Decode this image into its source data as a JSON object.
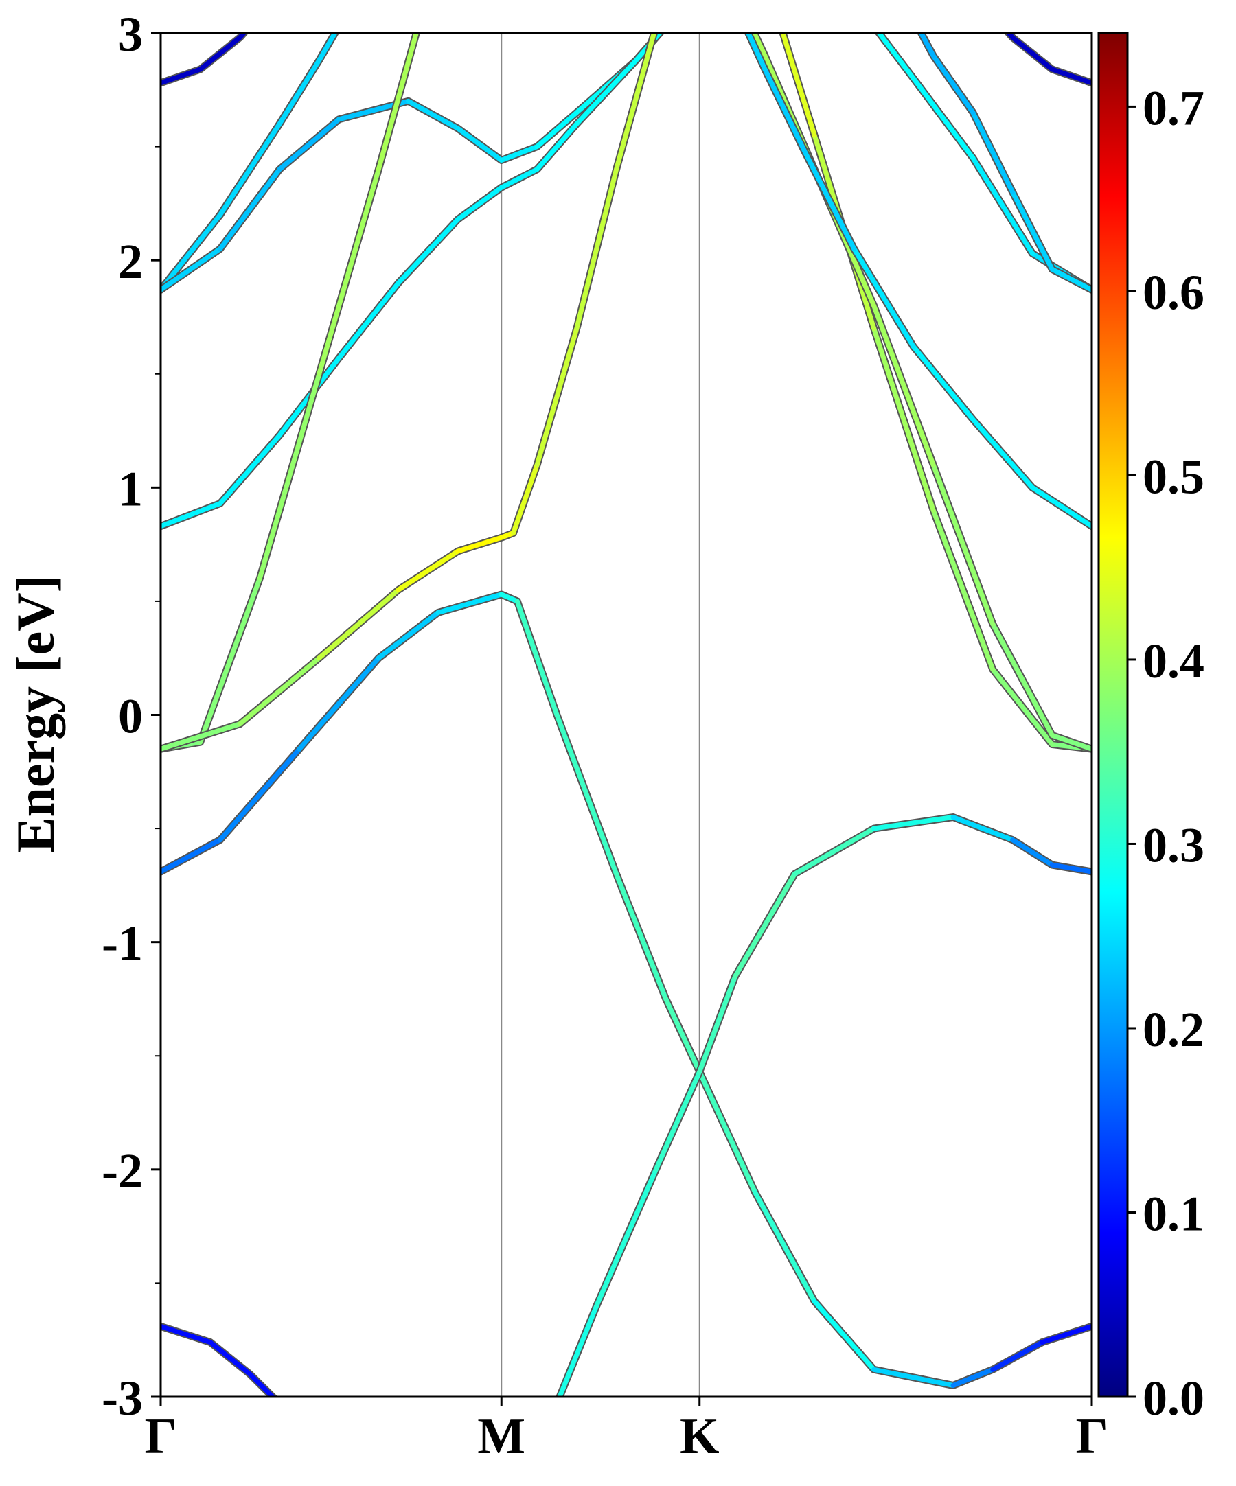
{
  "chart_data": {
    "type": "line",
    "title": "",
    "xlabel": "",
    "ylabel": "Energy [eV]",
    "ylim": [
      -3,
      3
    ],
    "x_range": [
      0,
      4.7
    ],
    "grid": false,
    "legend": "none",
    "x_ticks": [
      {
        "x": 0.0,
        "label": "Γ"
      },
      {
        "x": 1.72,
        "label": "M"
      },
      {
        "x": 2.72,
        "label": "K"
      },
      {
        "x": 4.7,
        "label": "Γ"
      }
    ],
    "y_ticks": [
      {
        "y": 3,
        "label": "3"
      },
      {
        "y": 2,
        "label": "2"
      },
      {
        "y": 1,
        "label": "1"
      },
      {
        "y": 0,
        "label": "0"
      },
      {
        "y": -1,
        "label": "-1"
      },
      {
        "y": -2,
        "label": "-2"
      },
      {
        "y": -3,
        "label": "-3"
      }
    ],
    "y_minor_ticks": [
      2.5,
      1.5,
      0.5,
      -0.5,
      -1.5,
      -2.5
    ],
    "colorbar": {
      "range": [
        0,
        0.74
      ],
      "ticks": [
        {
          "v": 0.0,
          "label": "0.0"
        },
        {
          "v": 0.1,
          "label": "0.1"
        },
        {
          "v": 0.2,
          "label": "0.2"
        },
        {
          "v": 0.3,
          "label": "0.3"
        },
        {
          "v": 0.4,
          "label": "0.4"
        },
        {
          "v": 0.5,
          "label": "0.5"
        },
        {
          "v": 0.6,
          "label": "0.6"
        },
        {
          "v": 0.7,
          "label": "0.7"
        }
      ]
    },
    "series": [
      {
        "points": [
          [
            0.0,
            2.78,
            0.05
          ],
          [
            0.2,
            2.84,
            0.05
          ],
          [
            0.4,
            2.98,
            0.05
          ],
          [
            0.45,
            3.03,
            0.05
          ]
        ]
      },
      {
        "points": [
          [
            4.7,
            2.78,
            0.05
          ],
          [
            4.5,
            2.84,
            0.05
          ],
          [
            4.3,
            2.98,
            0.05
          ],
          [
            4.25,
            3.03,
            0.05
          ]
        ]
      },
      {
        "points": [
          [
            0.0,
            1.87,
            0.25
          ],
          [
            0.3,
            2.2,
            0.25
          ],
          [
            0.6,
            2.6,
            0.25
          ],
          [
            0.8,
            2.88,
            0.25
          ],
          [
            0.9,
            3.03,
            0.25
          ]
        ]
      },
      {
        "points": [
          [
            0.0,
            1.87,
            0.25
          ],
          [
            0.3,
            2.05,
            0.24
          ],
          [
            0.6,
            2.4,
            0.23
          ],
          [
            0.9,
            2.62,
            0.22
          ],
          [
            1.25,
            2.7,
            0.25
          ],
          [
            1.5,
            2.58,
            0.25
          ],
          [
            1.72,
            2.44,
            0.26
          ],
          [
            1.9,
            2.5,
            0.27
          ],
          [
            2.1,
            2.65,
            0.28
          ],
          [
            2.4,
            2.88,
            0.28
          ],
          [
            2.55,
            3.03,
            0.28
          ]
        ]
      },
      {
        "points": [
          [
            0.0,
            0.83,
            0.27
          ],
          [
            0.3,
            0.93,
            0.27
          ],
          [
            0.6,
            1.23,
            0.27
          ],
          [
            0.9,
            1.57,
            0.27
          ],
          [
            1.2,
            1.9,
            0.27
          ],
          [
            1.5,
            2.18,
            0.27
          ],
          [
            1.72,
            2.32,
            0.27
          ],
          [
            1.9,
            2.4,
            0.27
          ],
          [
            2.1,
            2.6,
            0.28
          ],
          [
            2.4,
            2.88,
            0.28
          ],
          [
            2.55,
            3.03,
            0.28
          ]
        ]
      },
      {
        "points": [
          [
            0.0,
            -0.15,
            0.37
          ],
          [
            0.2,
            -0.12,
            0.37
          ],
          [
            0.5,
            0.6,
            0.38
          ],
          [
            0.8,
            1.5,
            0.39
          ],
          [
            1.1,
            2.4,
            0.4
          ],
          [
            1.3,
            3.03,
            0.4
          ]
        ]
      },
      {
        "points": [
          [
            0.0,
            -0.15,
            0.37
          ],
          [
            0.4,
            -0.04,
            0.38
          ],
          [
            0.8,
            0.25,
            0.4
          ],
          [
            1.2,
            0.55,
            0.44
          ],
          [
            1.5,
            0.72,
            0.46
          ],
          [
            1.72,
            0.78,
            0.47
          ],
          [
            1.78,
            0.8,
            0.45
          ],
          [
            1.9,
            1.1,
            0.43
          ],
          [
            2.1,
            1.7,
            0.42
          ],
          [
            2.3,
            2.4,
            0.42
          ],
          [
            2.5,
            3.03,
            0.42
          ]
        ]
      },
      {
        "points": [
          [
            0.0,
            -0.69,
            0.17
          ],
          [
            0.3,
            -0.55,
            0.18
          ],
          [
            0.7,
            -0.15,
            0.2
          ],
          [
            1.1,
            0.25,
            0.23
          ],
          [
            1.4,
            0.45,
            0.25
          ],
          [
            1.72,
            0.53,
            0.26
          ],
          [
            1.8,
            0.5,
            0.32
          ],
          [
            2.0,
            0.0,
            0.32
          ],
          [
            2.3,
            -0.7,
            0.32
          ],
          [
            2.55,
            -1.25,
            0.33
          ],
          [
            2.72,
            -1.57,
            0.33
          ],
          [
            3.0,
            -2.1,
            0.32
          ],
          [
            3.3,
            -2.58,
            0.3
          ],
          [
            3.6,
            -2.88,
            0.27
          ],
          [
            4.0,
            -2.95,
            0.22
          ],
          [
            4.2,
            -2.88,
            0.15
          ],
          [
            4.45,
            -2.76,
            0.1
          ],
          [
            4.7,
            -2.69,
            0.1
          ]
        ]
      },
      {
        "points": [
          [
            2.0,
            -3.03,
            0.29
          ],
          [
            2.2,
            -2.6,
            0.3
          ],
          [
            2.5,
            -2.0,
            0.31
          ],
          [
            2.72,
            -1.57,
            0.32
          ],
          [
            2.9,
            -1.15,
            0.33
          ],
          [
            3.2,
            -0.7,
            0.34
          ],
          [
            3.6,
            -0.5,
            0.31
          ],
          [
            4.0,
            -0.45,
            0.28
          ],
          [
            4.3,
            -0.55,
            0.22
          ],
          [
            4.5,
            -0.66,
            0.17
          ],
          [
            4.7,
            -0.69,
            0.17
          ]
        ]
      },
      {
        "points": [
          [
            0.0,
            -2.69,
            0.1
          ],
          [
            0.25,
            -2.76,
            0.1
          ],
          [
            0.45,
            -2.9,
            0.1
          ],
          [
            0.6,
            -3.03,
            0.1
          ]
        ]
      },
      {
        "points": [
          [
            4.7,
            -0.15,
            0.37
          ],
          [
            4.5,
            -0.13,
            0.37
          ],
          [
            4.2,
            0.2,
            0.38
          ],
          [
            3.9,
            0.9,
            0.39
          ],
          [
            3.6,
            1.7,
            0.4
          ],
          [
            3.3,
            2.55,
            0.43
          ],
          [
            3.13,
            3.03,
            0.45
          ]
        ]
      },
      {
        "points": [
          [
            4.7,
            -0.15,
            0.37
          ],
          [
            4.5,
            -0.09,
            0.37
          ],
          [
            4.2,
            0.4,
            0.38
          ],
          [
            3.9,
            1.1,
            0.39
          ],
          [
            3.6,
            1.8,
            0.4
          ],
          [
            3.3,
            2.4,
            0.4
          ],
          [
            3.05,
            2.9,
            0.4
          ],
          [
            2.98,
            3.03,
            0.4
          ]
        ]
      },
      {
        "points": [
          [
            4.7,
            0.83,
            0.27
          ],
          [
            4.4,
            1.0,
            0.27
          ],
          [
            4.1,
            1.3,
            0.27
          ],
          [
            3.8,
            1.62,
            0.27
          ],
          [
            3.5,
            2.05,
            0.25
          ],
          [
            3.25,
            2.48,
            0.24
          ],
          [
            3.05,
            2.84,
            0.24
          ],
          [
            2.95,
            3.03,
            0.25
          ]
        ]
      },
      {
        "points": [
          [
            4.7,
            1.87,
            0.25
          ],
          [
            4.4,
            2.03,
            0.26
          ],
          [
            4.1,
            2.45,
            0.27
          ],
          [
            3.8,
            2.8,
            0.28
          ],
          [
            3.6,
            3.03,
            0.28
          ]
        ]
      },
      {
        "points": [
          [
            4.7,
            1.87,
            0.25
          ],
          [
            4.5,
            1.96,
            0.25
          ],
          [
            4.3,
            2.3,
            0.24
          ],
          [
            4.1,
            2.65,
            0.23
          ],
          [
            3.9,
            2.9,
            0.22
          ],
          [
            3.82,
            3.03,
            0.22
          ]
        ]
      }
    ]
  }
}
